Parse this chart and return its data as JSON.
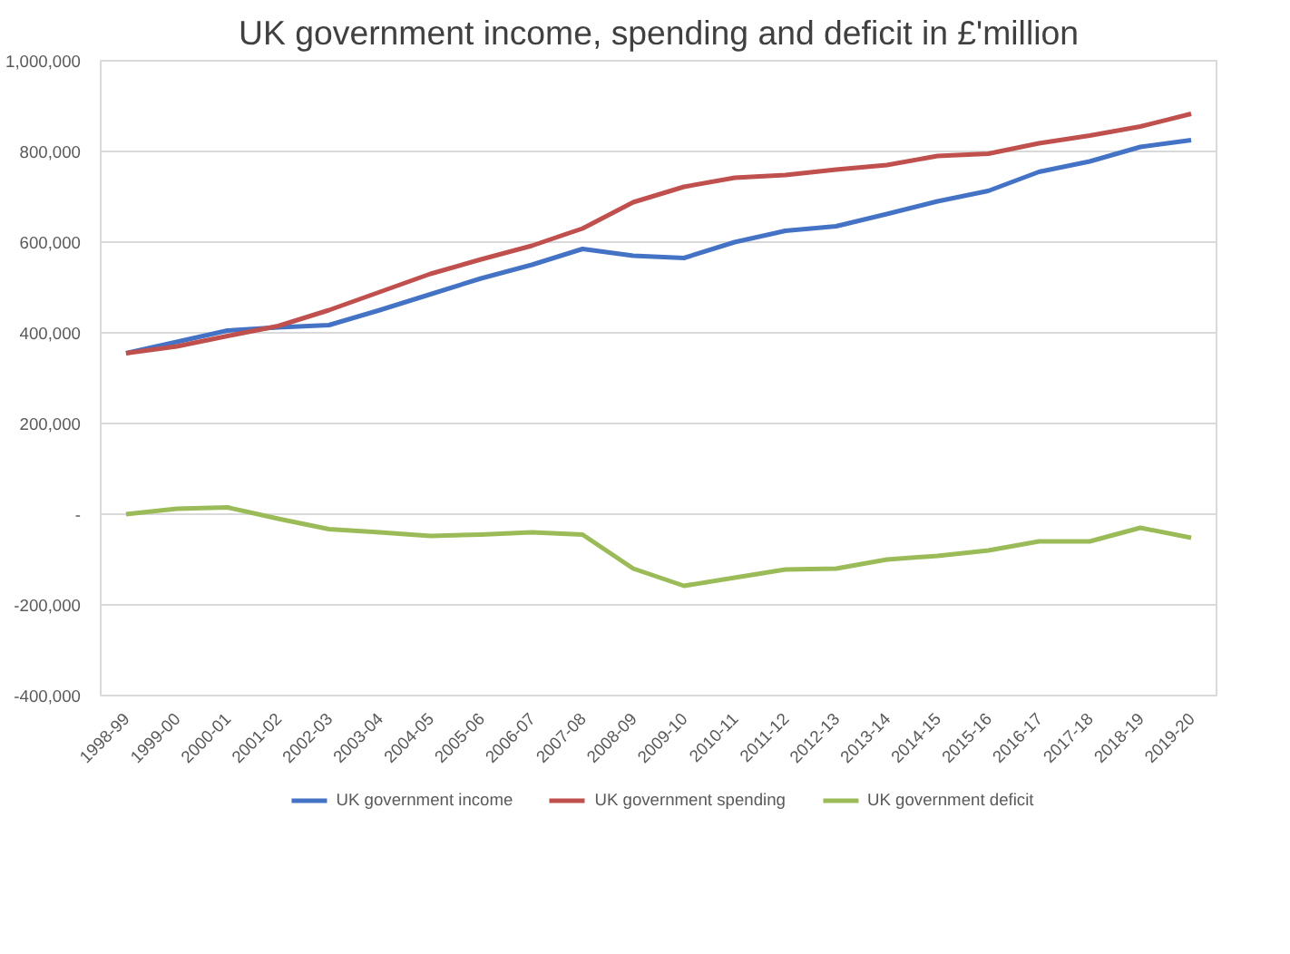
{
  "chart_data": {
    "type": "line",
    "title": "UK government income, spending and deficit in £'million",
    "categories": [
      "1998-99",
      "1999-00",
      "2000-01",
      "2001-02",
      "2002-03",
      "2003-04",
      "2004-05",
      "2005-06",
      "2006-07",
      "2007-08",
      "2008-09",
      "2009-10",
      "2010-11",
      "2011-12",
      "2012-13",
      "2013-14",
      "2014-15",
      "2015-16",
      "2016-17",
      "2017-18",
      "2018-19",
      "2019-20"
    ],
    "series": [
      {
        "name": "UK government income",
        "color": "#4472c4",
        "values": [
          355000,
          380000,
          405000,
          412000,
          417000,
          450000,
          485000,
          520000,
          550000,
          585000,
          570000,
          565000,
          600000,
          625000,
          635000,
          662000,
          690000,
          713000,
          755000,
          778000,
          810000,
          825000
        ]
      },
      {
        "name": "UK government spending",
        "color": "#c0504d",
        "values": [
          355000,
          370000,
          393000,
          415000,
          450000,
          490000,
          530000,
          562000,
          592000,
          630000,
          688000,
          722000,
          742000,
          748000,
          760000,
          770000,
          790000,
          795000,
          818000,
          835000,
          855000,
          883000
        ]
      },
      {
        "name": "UK government deficit",
        "color": "#9bbb59",
        "values": [
          0,
          12000,
          15000,
          -10000,
          -33000,
          -40000,
          -48000,
          -45000,
          -40000,
          -45000,
          -120000,
          -158000,
          -140000,
          -122000,
          -120000,
          -100000,
          -92000,
          -80000,
          -60000,
          -60000,
          -30000,
          -52000
        ]
      }
    ],
    "ylim": [
      -400000,
      1000000
    ],
    "yticks": [
      {
        "value": -400000,
        "label": "-400,000"
      },
      {
        "value": -200000,
        "label": "-200,000"
      },
      {
        "value": 0,
        "label": "-"
      },
      {
        "value": 200000,
        "label": "200,000"
      },
      {
        "value": 400000,
        "label": "400,000"
      },
      {
        "value": 600000,
        "label": "600,000"
      },
      {
        "value": 800000,
        "label": "800,000"
      },
      {
        "value": 1000000,
        "label": "1,000,000"
      }
    ],
    "grid": "y",
    "legend": "bottom",
    "marker": "none",
    "line_style": "solid"
  }
}
